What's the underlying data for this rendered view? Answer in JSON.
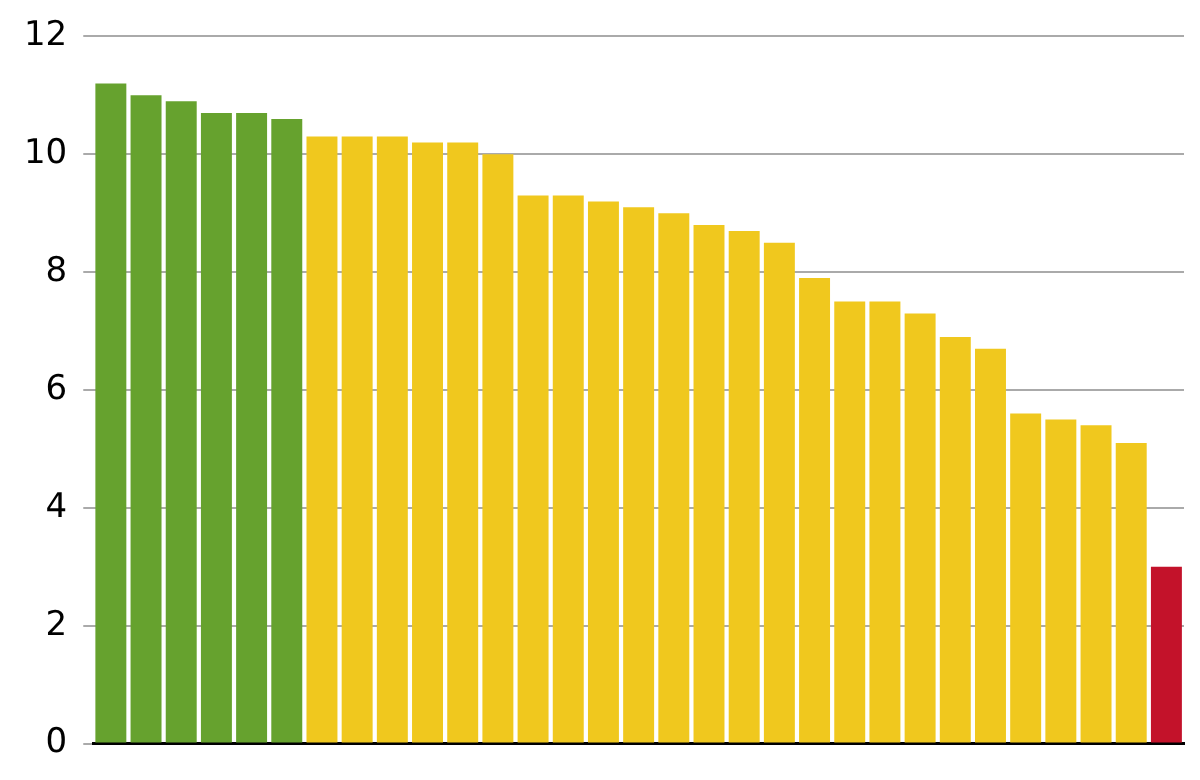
{
  "chart_data": {
    "type": "bar",
    "categories": [
      null,
      null,
      null,
      null,
      null,
      null,
      null,
      null,
      null,
      null,
      null,
      null,
      null,
      null,
      null,
      null,
      null,
      null,
      null,
      null,
      null,
      null,
      null,
      null,
      null,
      null,
      null,
      null,
      null,
      null,
      null
    ],
    "values": [
      11.2,
      11.0,
      10.9,
      10.7,
      10.7,
      10.6,
      10.3,
      10.3,
      10.3,
      10.2,
      10.2,
      10.0,
      9.3,
      9.3,
      9.2,
      9.1,
      9.0,
      8.8,
      8.7,
      8.5,
      7.9,
      7.5,
      7.5,
      7.3,
      6.9,
      6.7,
      5.6,
      5.5,
      5.4,
      5.1,
      3.0
    ],
    "colors": [
      "#66a22e",
      "#66a22e",
      "#66a22e",
      "#66a22e",
      "#66a22e",
      "#66a22e",
      "#f0c81e",
      "#f0c81e",
      "#f0c81e",
      "#f0c81e",
      "#f0c81e",
      "#f0c81e",
      "#f0c81e",
      "#f0c81e",
      "#f0c81e",
      "#f0c81e",
      "#f0c81e",
      "#f0c81e",
      "#f0c81e",
      "#f0c81e",
      "#f0c81e",
      "#f0c81e",
      "#f0c81e",
      "#f0c81e",
      "#f0c81e",
      "#f0c81e",
      "#f0c81e",
      "#f0c81e",
      "#f0c81e",
      "#f0c81e",
      "#c3122a"
    ],
    "ylim": [
      0,
      12
    ],
    "yticks": [
      0,
      2,
      4,
      6,
      8,
      10,
      12
    ],
    "grid": "y",
    "legend": false
  }
}
